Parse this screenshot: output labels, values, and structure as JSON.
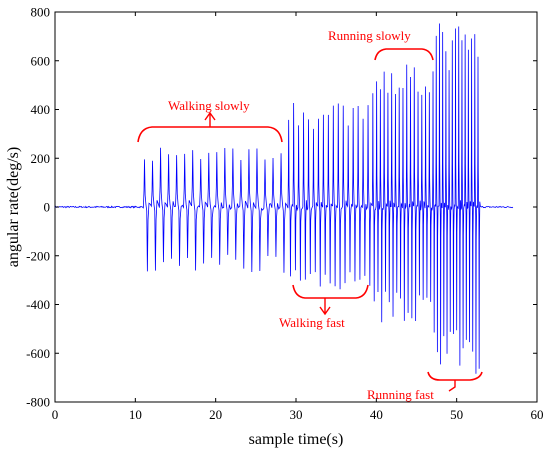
{
  "chart_data": {
    "type": "line",
    "xlabel": "sample time(s)",
    "ylabel": "angular rate(deg/s)",
    "xlim": [
      0,
      60
    ],
    "ylim": [
      -800,
      800
    ],
    "xticks": [
      0,
      10,
      20,
      30,
      40,
      50,
      60
    ],
    "yticks": [
      -800,
      -600,
      -400,
      -200,
      0,
      200,
      400,
      600,
      800
    ],
    "grid": false,
    "legend": "none",
    "line_color": "#0000ff",
    "annotation_color": "#ff0000",
    "segments": [
      {
        "start": 0,
        "end": 11,
        "pos_peak": 0,
        "neg_peak": 0
      },
      {
        "start": 11,
        "end": 29,
        "pos_peak": 260,
        "neg_peak": -270
      },
      {
        "start": 29,
        "end": 39.5,
        "pos_peak": 430,
        "neg_peak": -340
      },
      {
        "start": 39.5,
        "end": 47,
        "pos_peak": 620,
        "neg_peak": -480
      },
      {
        "start": 47,
        "end": 53,
        "pos_peak": 760,
        "neg_peak": -690
      },
      {
        "start": 53,
        "end": 57,
        "pos_peak": 0,
        "neg_peak": 0
      }
    ],
    "annotations": [
      {
        "text": "Walking slowly",
        "x": 20,
        "y": 370
      },
      {
        "text": "Walking fast",
        "x": 34,
        "y": -500
      },
      {
        "text": "Running slowly",
        "x": 43.5,
        "y": 720
      },
      {
        "text": "Running fast",
        "x": 49,
        "y": -780
      }
    ]
  }
}
